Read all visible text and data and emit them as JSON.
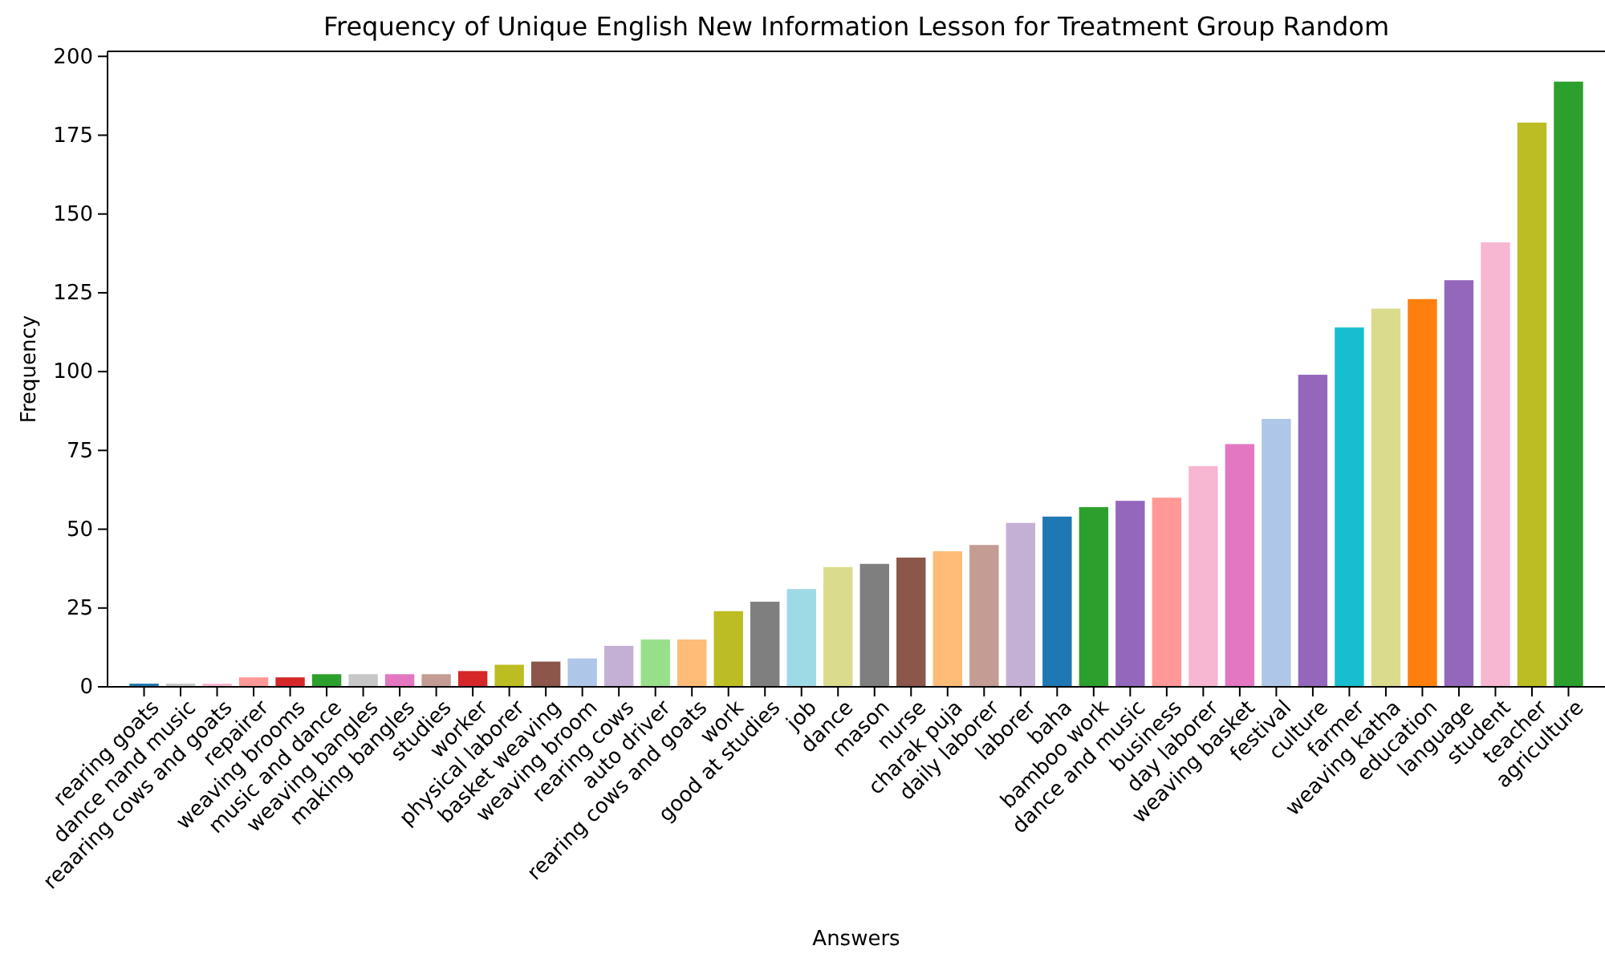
{
  "chart_data": {
    "type": "bar",
    "title": "Frequency of Unique English New Information Lesson for Treatment Group Random",
    "xlabel": "Answers",
    "ylabel": "Frequency",
    "categories": [
      "rearing goats",
      "dance nand music",
      "reaaring cows and goats",
      "repairer",
      "weaving brooms",
      "music and dance",
      "weaving bangles",
      "making bangles",
      "studies",
      "worker",
      "physical laborer",
      "basket weaving",
      "weaving broom",
      "rearing cows",
      "auto driver",
      "rearing cows and goats",
      "work",
      "good at studies",
      "job",
      "dance",
      "mason",
      "nurse",
      "charak puja",
      "daily laborer",
      "laborer",
      "baha",
      "bamboo work",
      "dance and music",
      "business",
      "day laborer",
      "weaving basket",
      "festival",
      "culture",
      "farmer",
      "weaving katha",
      "education",
      "language",
      "student",
      "teacher",
      "agriculture"
    ],
    "values": [
      1,
      1,
      1,
      3,
      3,
      4,
      4,
      4,
      4,
      5,
      7,
      8,
      9,
      13,
      15,
      15,
      24,
      27,
      31,
      38,
      39,
      41,
      43,
      45,
      52,
      54,
      57,
      59,
      60,
      70,
      77,
      85,
      99,
      114,
      120,
      123,
      129,
      141,
      179,
      192
    ],
    "colors": [
      "#1f77b4",
      "#c7c7c7",
      "#f7b6d2",
      "#ff9896",
      "#d62728",
      "#2ca02c",
      "#c7c7c7",
      "#e377c2",
      "#c49c94",
      "#d62728",
      "#bcbd22",
      "#8c564b",
      "#aec7e8",
      "#c5b0d5",
      "#98df8a",
      "#ffbb78",
      "#bcbd22",
      "#7f7f7f",
      "#9edae5",
      "#dbdb8d",
      "#7f7f7f",
      "#8c564b",
      "#ffbb78",
      "#c49c94",
      "#c5b0d5",
      "#1f77b4",
      "#2ca02c",
      "#9467bd",
      "#ff9896",
      "#f7b6d2",
      "#e377c2",
      "#aec7e8",
      "#9467bd",
      "#17becf",
      "#dbdb8d",
      "#ff7f0e",
      "#9467bd",
      "#f7b6d2",
      "#bcbd22",
      "#2ca02c"
    ],
    "ylim": [
      0,
      201.6
    ],
    "yticks": [
      0,
      25,
      50,
      75,
      100,
      125,
      150,
      175,
      200
    ]
  }
}
